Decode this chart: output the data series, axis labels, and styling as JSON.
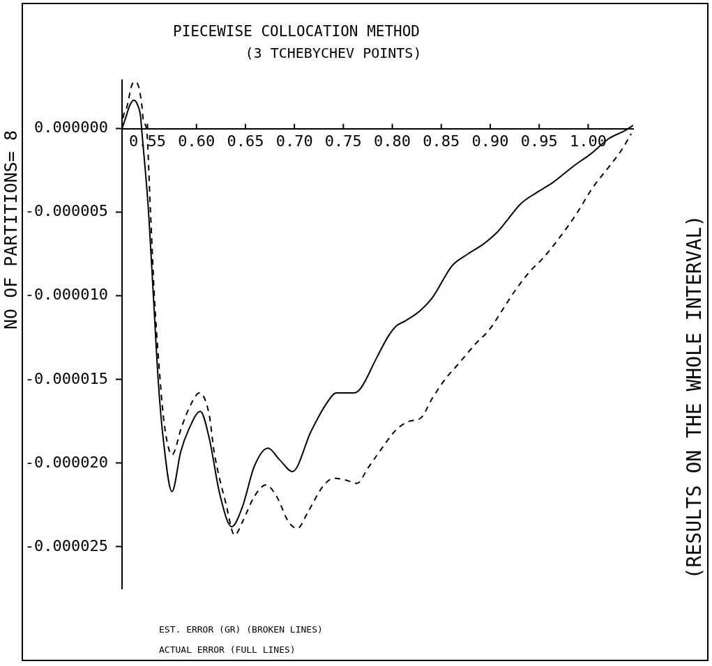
{
  "chart_data": {
    "type": "line",
    "title": "PIECEWISE COLLOCATION METHOD",
    "subtitle": "(3 TCHEBYCHEV POINTS)",
    "ylabel": "NO OF PARTITIONS= 8",
    "y2label": "(RESULTS ON THE WHOLE INTERVAL)",
    "annotations": [
      "EST. ERROR (GR) (BROKEN LINES)",
      "ACTUAL ERROR (FULL LINES)"
    ],
    "xlim": [
      0.524,
      1.046
    ],
    "xticks": [
      0.55,
      {
        "value": 0.6,
        "label": "0.60"
      },
      0.65,
      {
        "value": 0.7,
        "label": "0.70"
      },
      0.75,
      {
        "value": 0.8,
        "label": "0.80"
      },
      0.85,
      {
        "value": 0.9,
        "label": "0.90"
      },
      0.95,
      {
        "value": 1,
        "label": "1.00"
      }
    ],
    "ylim": [
      -2.75e-05,
      2.9e-06
    ],
    "yticks": [
      {
        "value": 0,
        "label": "0.000000"
      },
      {
        "value": -5e-06,
        "label": "-0.000005"
      },
      {
        "value": -1e-05,
        "label": "-0.000010"
      },
      {
        "value": -1.5e-05,
        "label": "-0.000015"
      },
      {
        "value": -2e-05,
        "label": "-0.000020"
      },
      {
        "value": -2.5e-05,
        "label": "-0.000025"
      }
    ],
    "series": [
      {
        "color": "#000000",
        "line_style": "dashed",
        "x": [
          0.524,
          0.525,
          0.529,
          0.534,
          0.537,
          0.541,
          0.544,
          0.546,
          0.549,
          0.553,
          0.557,
          0.563,
          0.567,
          0.575,
          0.585,
          0.595,
          0.603,
          0.613,
          0.618,
          0.63,
          0.639,
          0.647,
          0.659,
          0.671,
          0.682,
          0.694,
          0.703,
          0.714,
          0.729,
          0.74,
          0.752,
          0.764,
          0.775,
          0.787,
          0.804,
          0.817,
          0.829,
          0.841,
          0.855,
          0.867,
          0.886,
          0.898,
          0.914,
          0.924,
          0.941,
          0.953,
          0.971,
          0.988,
          1.005,
          1.021,
          1.035,
          1.044
        ],
        "values": [
          0,
          6e-07,
          1.3e-06,
          2.6e-06,
          2.8e-06,
          2.5e-06,
          1.5e-06,
          4e-07,
          0,
          -4.9e-06,
          -1e-05,
          -1.51e-05,
          -1.76e-05,
          -1.95e-05,
          -1.78e-05,
          -1.64e-05,
          -1.58e-05,
          -1.71e-05,
          -1.93e-05,
          -2.24e-05,
          -2.43e-05,
          -2.35e-05,
          -2.2e-05,
          -2.13e-05,
          -2.2e-05,
          -2.35e-05,
          -2.39e-05,
          -2.29e-05,
          -2.14e-05,
          -2.09e-05,
          -2.1e-05,
          -2.12e-05,
          -2.03e-05,
          -1.93e-05,
          -1.8e-05,
          -1.75e-05,
          -1.73e-05,
          -1.61e-05,
          -1.49e-05,
          -1.41e-05,
          -1.28e-05,
          -1.21e-05,
          -1.07e-05,
          -9.8e-06,
          -8.5e-06,
          -7.8e-06,
          -6.5e-06,
          -5.1e-06,
          -3.5e-06,
          -2.3e-06,
          -1.2e-06,
          -3e-07
        ]
      },
      {
        "color": "#000000",
        "line_style": "solid",
        "x": [
          0.524,
          0.528,
          0.532,
          0.536,
          0.54,
          0.543,
          0.544,
          0.551,
          0.556,
          0.561,
          0.566,
          0.575,
          0.584,
          0.592,
          0.604,
          0.613,
          0.624,
          0.636,
          0.647,
          0.659,
          0.673,
          0.685,
          0.698,
          0.717,
          0.732,
          0.743,
          0.761,
          0.768,
          0.784,
          0.796,
          0.804,
          0.813,
          0.828,
          0.841,
          0.861,
          0.877,
          0.893,
          0.907,
          0.917,
          0.931,
          0.948,
          0.962,
          0.971,
          0.986,
          1.003,
          1.021,
          1.038,
          1.046
        ],
        "values": [
          0,
          7e-07,
          1.4e-06,
          1.7e-06,
          1.4e-06,
          7e-07,
          0,
          -4.9e-06,
          -1e-05,
          -1.51e-05,
          -1.85e-05,
          -2.17e-05,
          -1.93e-05,
          -1.8e-05,
          -1.69e-05,
          -1.85e-05,
          -2.19e-05,
          -2.38e-05,
          -2.26e-05,
          -2.02e-05,
          -1.91e-05,
          -1.98e-05,
          -2.05e-05,
          -1.81e-05,
          -1.65e-05,
          -1.58e-05,
          -1.58e-05,
          -1.55e-05,
          -1.37e-05,
          -1.24e-05,
          -1.18e-05,
          -1.15e-05,
          -1.09e-05,
          -1.01e-05,
          -8.2e-06,
          -7.5e-06,
          -6.9e-06,
          -6.2e-06,
          -5.5e-06,
          -4.5e-06,
          -3.8e-06,
          -3.3e-06,
          -2.9e-06,
          -2.2e-06,
          -1.5e-06,
          -6e-07,
          -1e-07,
          2e-07
        ]
      }
    ]
  }
}
